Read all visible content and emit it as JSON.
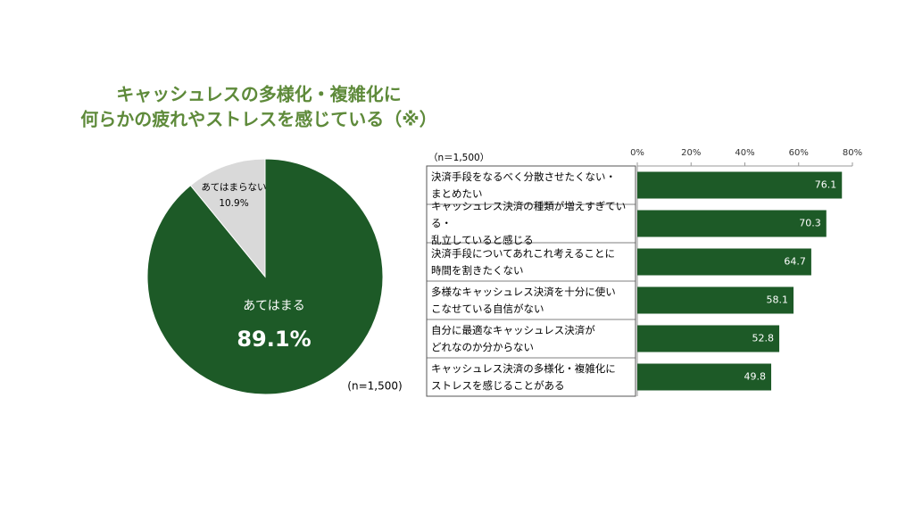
{
  "title": [
    "キャッシュレスの多様化・複雑化に",
    "何らかの疲れやストレスを感じている（※）"
  ],
  "chart_data": [
    {
      "type": "pie",
      "categories": [
        "あてはまる",
        "あてはまらない"
      ],
      "values": [
        89.1,
        10.9
      ],
      "value_labels": [
        "89.1%",
        "10.9%"
      ],
      "colors": [
        "#1d5a27",
        "#d9d9d9"
      ],
      "note": "(n=1,500)"
    },
    {
      "type": "hbar",
      "note": "（n＝1,500）",
      "categories": [
        "決済手段をなるべく分散させたくない・\nまとめたい",
        "キャッシュレス決済の種類が増えすぎている・\n乱立していると感じる",
        "決済手段についてあれこれ考えることに\n時間を割きたくない",
        "多様なキャッシュレス決済を十分に使い\nこなせている自信がない",
        "自分に最適なキャッシュレス決済が\nどれなのか分からない",
        "キャッシュレス決済の多様化・複雑化に\nストレスを感じることがある"
      ],
      "values": [
        76.1,
        70.3,
        64.7,
        58.1,
        52.8,
        49.8
      ],
      "color": "#1d5a27",
      "xlim": [
        0,
        80
      ],
      "xticks": [
        {
          "value": 0,
          "label": "0%"
        },
        {
          "value": 20,
          "label": "20%"
        },
        {
          "value": 40,
          "label": "40%"
        },
        {
          "value": 60,
          "label": "60%"
        },
        {
          "value": 80,
          "label": "80%"
        }
      ]
    }
  ]
}
